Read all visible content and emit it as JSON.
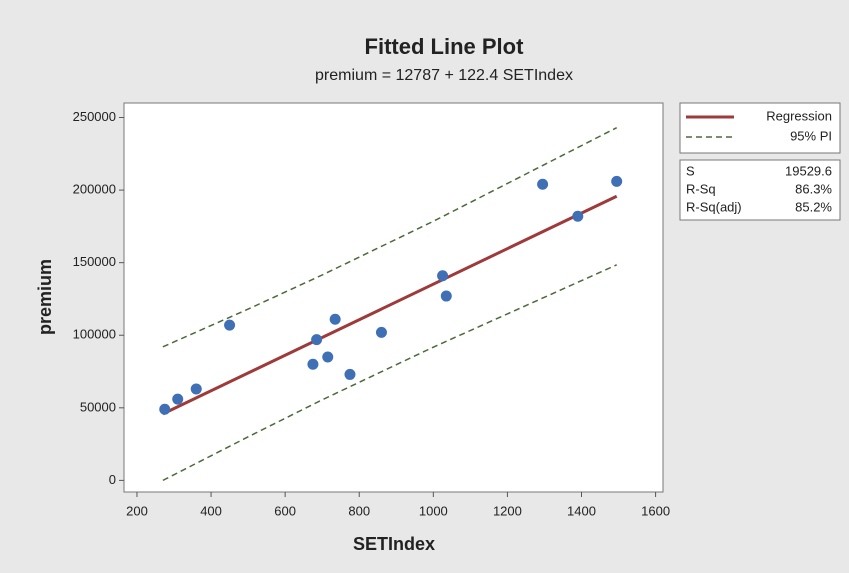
{
  "chart_data": {
    "type": "scatter",
    "title": "Fitted Line Plot",
    "subtitle": "premium = 12787 + 122.4 SETIndex",
    "x_label": "SETIndex",
    "y_label": "premium",
    "x": [
      275,
      310,
      360,
      450,
      675,
      685,
      715,
      735,
      775,
      860,
      1025,
      1035,
      1295,
      1390,
      1495
    ],
    "values": [
      49000,
      56000,
      63000,
      107000,
      80000,
      97000,
      85000,
      111000,
      73000,
      102000,
      141000,
      127000,
      204000,
      182000,
      206000
    ],
    "color": "#3f6fb5",
    "series": [
      {
        "name": "Regression",
        "color": "#9e3a3a",
        "style": "solid",
        "x": [
          270,
          1495
        ],
        "values": [
          45835,
          195775
        ]
      },
      {
        "name": "95% PI",
        "color": "#4a6a3a",
        "style": "dashed",
        "x": [
          270,
          500,
          700,
          1000,
          1495
        ],
        "upper": [
          92000,
          118000,
          141500,
          178500,
          243000
        ],
        "lower": [
          0,
          30000,
          55500,
          91800,
          148500
        ]
      }
    ],
    "xlim": [
      165,
      1620
    ],
    "ylim": [
      -8000,
      260000
    ],
    "xticks": [
      200,
      400,
      600,
      800,
      1000,
      1200,
      1400,
      1600
    ],
    "yticks": [
      0,
      50000,
      100000,
      150000,
      200000,
      250000
    ],
    "stats": [
      {
        "label": "S",
        "value": "19529.6"
      },
      {
        "label": "R-Sq",
        "value": "86.3%"
      },
      {
        "label": "R-Sq(adj)",
        "value": "85.2%"
      }
    ]
  }
}
